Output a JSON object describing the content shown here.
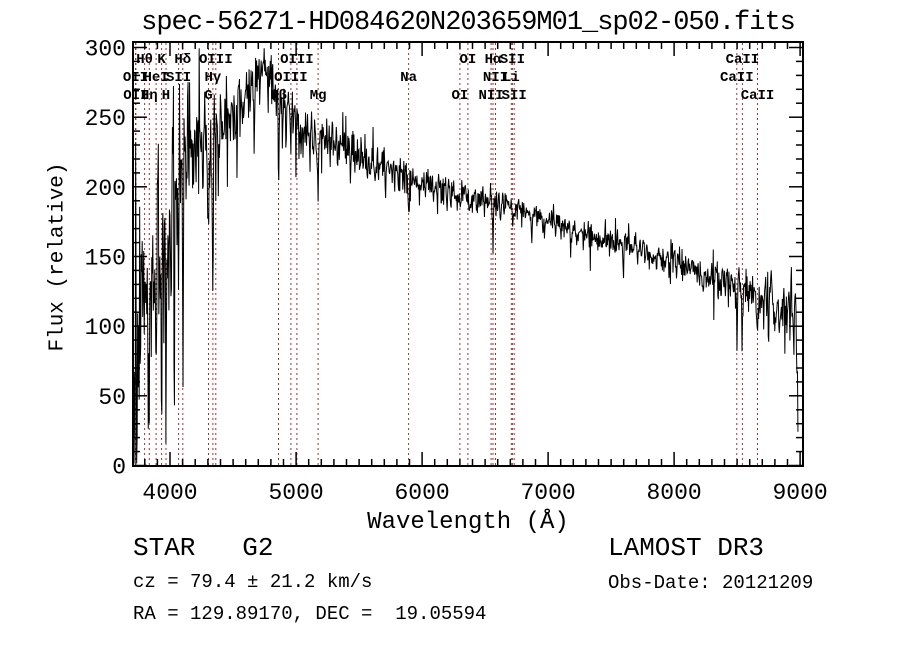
{
  "footer": {
    "class_label": "STAR   G2",
    "survey": "LAMOST DR3",
    "cz": "cz = 79.4 ± 21.2 km/s",
    "obs_date": "Obs-Date: 20121209",
    "coords": "RA = 129.89170, DEC =  19.05594"
  },
  "chart_data": {
    "type": "line",
    "title": "spec-56271-HD084620N203659M01_sp02-050.fits",
    "xlabel": "Wavelength (Å)",
    "ylabel": "Flux (relative)",
    "xlim": [
      3706,
      9023
    ],
    "ylim": [
      0,
      300
    ],
    "xticks": [
      4000,
      5000,
      6000,
      7000,
      8000,
      9000
    ],
    "yticks": [
      0,
      50,
      100,
      150,
      200,
      250,
      300
    ],
    "x_minor_step": 100,
    "y_minor_step": 10,
    "grid": false,
    "background": "#ffffff",
    "line_color": "#000000",
    "axis_color": "#000000",
    "marker_color": "#a03232",
    "spectral_lines": [
      {
        "label": "Hθ",
        "wavelength": 3798,
        "row": 1
      },
      {
        "label": "K",
        "wavelength": 3933,
        "row": 1
      },
      {
        "label": "Hδ",
        "wavelength": 4101,
        "row": 1
      },
      {
        "label": "OIII",
        "wavelength": 4363,
        "row": 1
      },
      {
        "label": "OIII",
        "wavelength": 5007,
        "row": 1
      },
      {
        "label": "OI",
        "wavelength": 6364,
        "row": 1
      },
      {
        "label": "Hα",
        "wavelength": 6563,
        "row": 1
      },
      {
        "label": "SII",
        "wavelength": 6717,
        "row": 1
      },
      {
        "label": "CaII",
        "wavelength": 8542,
        "row": 1
      },
      {
        "label": "OII",
        "wavelength": 3726,
        "row": 2
      },
      {
        "label": "HeI",
        "wavelength": 3889,
        "row": 2
      },
      {
        "label": "SII",
        "wavelength": 4068,
        "row": 2
      },
      {
        "label": "Hγ",
        "wavelength": 4340,
        "row": 2
      },
      {
        "label": "OIII",
        "wavelength": 4959,
        "row": 2
      },
      {
        "label": "Na",
        "wavelength": 5893,
        "row": 2
      },
      {
        "label": "NII",
        "wavelength": 6583,
        "row": 2
      },
      {
        "label": "Li",
        "wavelength": 6708,
        "row": 2
      },
      {
        "label": "CaII",
        "wavelength": 8498,
        "row": 2
      },
      {
        "label": "OII",
        "wavelength": 3729,
        "row": 3
      },
      {
        "label": "Hη",
        "wavelength": 3835,
        "row": 3
      },
      {
        "label": "H",
        "wavelength": 3968,
        "row": 3
      },
      {
        "label": "G",
        "wavelength": 4305,
        "row": 3
      },
      {
        "label": "Hβ",
        "wavelength": 4861,
        "row": 3
      },
      {
        "label": "Mg",
        "wavelength": 5175,
        "row": 3
      },
      {
        "label": "OI",
        "wavelength": 6300,
        "row": 3
      },
      {
        "label": "NII",
        "wavelength": 6548,
        "row": 3
      },
      {
        "label": "SII",
        "wavelength": 6731,
        "row": 3
      },
      {
        "label": "CaII",
        "wavelength": 8662,
        "row": 3
      }
    ],
    "continuum": [
      [
        3707,
        60
      ],
      [
        3725,
        110
      ],
      [
        3745,
        135
      ],
      [
        3775,
        150
      ],
      [
        3800,
        165
      ],
      [
        3835,
        160
      ],
      [
        3870,
        172
      ],
      [
        3905,
        172
      ],
      [
        3933,
        170
      ],
      [
        3968,
        166
      ],
      [
        4000,
        192
      ],
      [
        4030,
        203
      ],
      [
        4060,
        212
      ],
      [
        4090,
        220
      ],
      [
        4120,
        226
      ],
      [
        4160,
        234
      ],
      [
        4200,
        237
      ],
      [
        4260,
        240
      ],
      [
        4310,
        237
      ],
      [
        4360,
        243
      ],
      [
        4420,
        249
      ],
      [
        4480,
        253
      ],
      [
        4540,
        257
      ],
      [
        4600,
        262
      ],
      [
        4660,
        270
      ],
      [
        4700,
        277
      ],
      [
        4730,
        282
      ],
      [
        4770,
        284
      ],
      [
        4805,
        274
      ],
      [
        4861,
        257
      ],
      [
        4910,
        256
      ],
      [
        4960,
        251
      ],
      [
        5010,
        247
      ],
      [
        5080,
        244
      ],
      [
        5160,
        240
      ],
      [
        5240,
        237
      ],
      [
        5320,
        232
      ],
      [
        5400,
        228
      ],
      [
        5480,
        225
      ],
      [
        5560,
        221
      ],
      [
        5640,
        217
      ],
      [
        5720,
        214
      ],
      [
        5800,
        211
      ],
      [
        5880,
        207
      ],
      [
        5960,
        204
      ],
      [
        6040,
        202
      ],
      [
        6120,
        200
      ],
      [
        6200,
        197
      ],
      [
        6280,
        194
      ],
      [
        6360,
        192
      ],
      [
        6440,
        191
      ],
      [
        6520,
        191
      ],
      [
        6600,
        188
      ],
      [
        6680,
        186
      ],
      [
        6760,
        184
      ],
      [
        6840,
        181
      ],
      [
        6920,
        179
      ],
      [
        7000,
        177
      ],
      [
        7080,
        174
      ],
      [
        7160,
        170
      ],
      [
        7240,
        167
      ],
      [
        7320,
        164
      ],
      [
        7400,
        162
      ],
      [
        7480,
        161
      ],
      [
        7560,
        161
      ],
      [
        7640,
        160
      ],
      [
        7720,
        156
      ],
      [
        7800,
        152
      ],
      [
        7880,
        149
      ],
      [
        7960,
        147
      ],
      [
        8040,
        145
      ],
      [
        8120,
        142
      ],
      [
        8200,
        139
      ],
      [
        8280,
        136
      ],
      [
        8360,
        133
      ],
      [
        8440,
        130
      ],
      [
        8520,
        127
      ],
      [
        8600,
        126
      ],
      [
        8680,
        123
      ],
      [
        8760,
        120
      ],
      [
        8840,
        118
      ],
      [
        8920,
        113
      ],
      [
        8960,
        109
      ],
      [
        8978,
        70
      ],
      [
        8985,
        18
      ]
    ],
    "noise_sigma": [
      [
        3707,
        55
      ],
      [
        3760,
        45
      ],
      [
        3820,
        38
      ],
      [
        3900,
        32
      ],
      [
        3990,
        26
      ],
      [
        4100,
        20
      ],
      [
        4250,
        15
      ],
      [
        4450,
        12
      ],
      [
        4700,
        11
      ],
      [
        4900,
        9
      ],
      [
        5300,
        8
      ],
      [
        5800,
        6.5
      ],
      [
        6300,
        5.5
      ],
      [
        6800,
        4.5
      ],
      [
        7300,
        4.5
      ],
      [
        7800,
        5
      ],
      [
        8300,
        6.5
      ],
      [
        8700,
        9
      ],
      [
        8990,
        11
      ]
    ],
    "absorption_dips": [
      [
        3712,
        80,
        5
      ],
      [
        3722,
        95,
        4
      ],
      [
        3737,
        115,
        5
      ],
      [
        3753,
        130,
        5
      ],
      [
        3770,
        85,
        4
      ],
      [
        3786,
        70,
        4
      ],
      [
        3798,
        85,
        5
      ],
      [
        3812,
        75,
        4
      ],
      [
        3827,
        90,
        4
      ],
      [
        3835,
        140,
        5
      ],
      [
        3852,
        95,
        4
      ],
      [
        3868,
        70,
        4
      ],
      [
        3889,
        105,
        5
      ],
      [
        3912,
        75,
        4
      ],
      [
        3933,
        132,
        5
      ],
      [
        3950,
        70,
        4
      ],
      [
        3968,
        127,
        5
      ],
      [
        3990,
        80,
        4
      ],
      [
        4008,
        90,
        4
      ],
      [
        4033,
        175,
        4
      ],
      [
        4055,
        60,
        4
      ],
      [
        4068,
        70,
        4
      ],
      [
        4083,
        55,
        3
      ],
      [
        4101,
        170,
        5
      ],
      [
        4128,
        55,
        4
      ],
      [
        4150,
        40,
        3
      ],
      [
        4180,
        45,
        3
      ],
      [
        4226,
        55,
        4
      ],
      [
        4260,
        35,
        3
      ],
      [
        4305,
        65,
        9
      ],
      [
        4340,
        135,
        5
      ],
      [
        4363,
        45,
        3
      ],
      [
        4383,
        55,
        4
      ],
      [
        4415,
        35,
        3
      ],
      [
        4455,
        40,
        3
      ],
      [
        4481,
        35,
        3
      ],
      [
        4530,
        30,
        3
      ],
      [
        4580,
        25,
        3
      ],
      [
        4668,
        38,
        4
      ],
      [
        4712,
        25,
        3
      ],
      [
        4780,
        28,
        3
      ],
      [
        4861,
        62,
        5
      ],
      [
        4892,
        35,
        3
      ],
      [
        4920,
        40,
        4
      ],
      [
        4957,
        30,
        3
      ],
      [
        5000,
        28,
        3
      ],
      [
        5040,
        30,
        3
      ],
      [
        5110,
        25,
        3
      ],
      [
        5175,
        42,
        10
      ],
      [
        5270,
        28,
        4
      ],
      [
        5330,
        20,
        3
      ],
      [
        5430,
        22,
        3
      ],
      [
        5530,
        18,
        3
      ],
      [
        5625,
        15,
        3
      ],
      [
        5710,
        18,
        3
      ],
      [
        5782,
        20,
        3
      ],
      [
        5860,
        15,
        3
      ],
      [
        5893,
        30,
        6
      ],
      [
        5980,
        15,
        3
      ],
      [
        6060,
        14,
        3
      ],
      [
        6122,
        20,
        3
      ],
      [
        6200,
        12,
        3
      ],
      [
        6300,
        14,
        3
      ],
      [
        6364,
        10,
        3
      ],
      [
        6495,
        12,
        3
      ],
      [
        6563,
        40,
        4
      ],
      [
        6620,
        10,
        3
      ],
      [
        6717,
        12,
        4
      ],
      [
        6790,
        10,
        3
      ],
      [
        6870,
        16,
        5
      ],
      [
        6960,
        10,
        3
      ],
      [
        7060,
        12,
        3
      ],
      [
        7180,
        16,
        4
      ],
      [
        7280,
        12,
        3
      ],
      [
        7420,
        10,
        3
      ],
      [
        7600,
        18,
        5
      ],
      [
        7710,
        12,
        3
      ],
      [
        7860,
        12,
        3
      ],
      [
        7960,
        10,
        3
      ],
      [
        8090,
        12,
        3
      ],
      [
        8160,
        12,
        3
      ],
      [
        8230,
        16,
        4
      ],
      [
        8350,
        18,
        4
      ],
      [
        8430,
        14,
        3
      ],
      [
        8498,
        28,
        5
      ],
      [
        8542,
        34,
        5
      ],
      [
        8590,
        20,
        3
      ],
      [
        8662,
        30,
        5
      ],
      [
        8710,
        22,
        3
      ],
      [
        8750,
        32,
        4
      ],
      [
        8800,
        20,
        3
      ],
      [
        8840,
        25,
        3
      ],
      [
        8880,
        38,
        4
      ],
      [
        8920,
        25,
        3
      ],
      [
        8950,
        32,
        4
      ]
    ],
    "emission_spikes": [
      [
        3728,
        95,
        3
      ],
      [
        3757,
        105,
        3
      ],
      [
        3905,
        60,
        3
      ],
      [
        4026,
        115,
        3
      ],
      [
        4096,
        75,
        3
      ],
      [
        4255,
        25,
        3
      ],
      [
        4745,
        14,
        4
      ],
      [
        5210,
        12,
        3
      ],
      [
        6420,
        10,
        3
      ],
      [
        7640,
        16,
        4
      ],
      [
        8090,
        12,
        3
      ],
      [
        8770,
        14,
        3
      ]
    ],
    "sample_step_angstrom": 4,
    "seed": 1234567,
    "noise_spike_prob": 0.05,
    "noise_spike_mult": 2.2
  }
}
